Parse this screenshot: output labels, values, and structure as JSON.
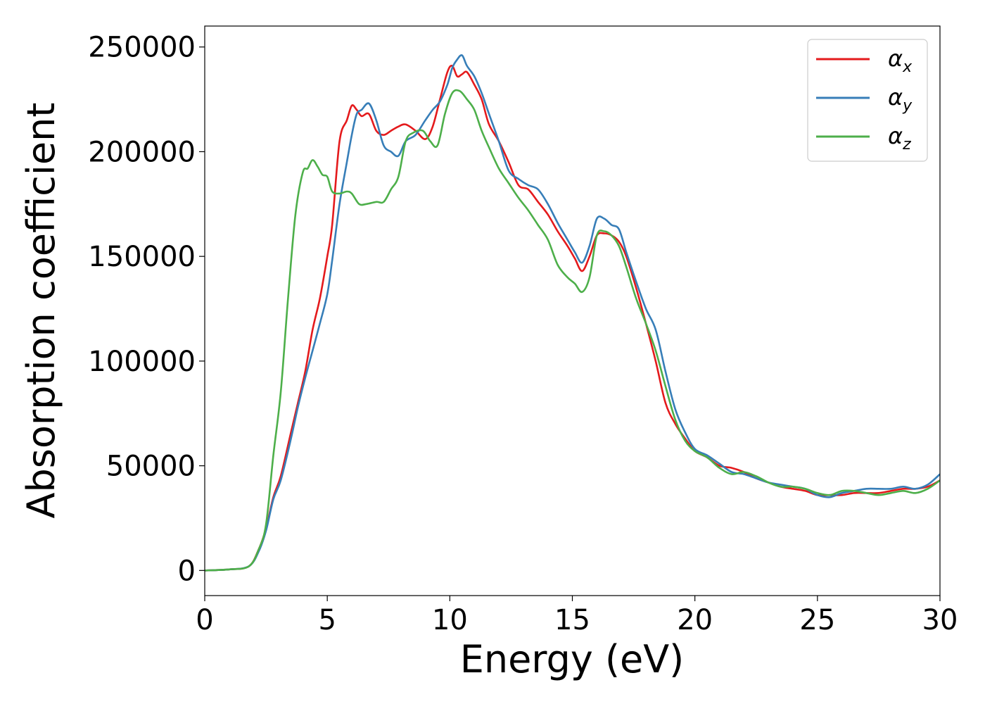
{
  "chart_data": {
    "type": "line",
    "xlabel": "Energy (eV)",
    "ylabel": "Absorption coefficient",
    "xlim": [
      0,
      30
    ],
    "ylim": [
      -12000,
      260000
    ],
    "xticks": [
      0,
      5,
      10,
      15,
      20,
      25,
      30
    ],
    "xtick_labels": [
      "0",
      "5",
      "10",
      "15",
      "20",
      "25",
      "30"
    ],
    "yticks": [
      0,
      50000,
      100000,
      150000,
      200000,
      250000
    ],
    "ytick_labels": [
      "0",
      "50000",
      "100000",
      "150000",
      "200000",
      "250000"
    ],
    "grid": false,
    "legend_position": "top-right",
    "series": [
      {
        "name": "α",
        "subscript": "x",
        "color": "#e41a1c",
        "x": [
          0,
          1.0,
          1.8,
          2.2,
          2.5,
          2.8,
          3.1,
          3.5,
          3.8,
          4.1,
          4.4,
          4.7,
          5.0,
          5.2,
          5.5,
          5.8,
          6.0,
          6.2,
          6.4,
          6.7,
          7.0,
          7.3,
          7.6,
          7.9,
          8.2,
          8.6,
          9.0,
          9.3,
          9.6,
          9.9,
          10.1,
          10.3,
          10.5,
          10.7,
          11.0,
          11.3,
          11.6,
          12.0,
          12.4,
          12.8,
          13.2,
          13.6,
          14.0,
          14.4,
          14.8,
          15.1,
          15.4,
          15.7,
          16.0,
          16.3,
          16.6,
          16.9,
          17.2,
          17.6,
          18.0,
          18.4,
          18.8,
          19.2,
          19.6,
          20.0,
          20.5,
          21.0,
          21.5,
          22.0,
          22.5,
          23.0,
          23.5,
          24.0,
          24.5,
          25.0,
          25.5,
          26.0,
          26.5,
          27.0,
          27.5,
          28.0,
          28.5,
          29.0,
          29.5,
          30.0
        ],
        "y": [
          0,
          500,
          2000,
          10000,
          20000,
          35000,
          45000,
          65000,
          80000,
          95000,
          115000,
          130000,
          150000,
          165000,
          205000,
          215000,
          222000,
          220000,
          217000,
          218000,
          210000,
          208000,
          210000,
          212000,
          213000,
          210000,
          206000,
          212000,
          225000,
          238000,
          241000,
          236000,
          237000,
          238000,
          232000,
          225000,
          213000,
          205000,
          195000,
          184000,
          182000,
          176000,
          170000,
          162000,
          155000,
          149000,
          143000,
          150000,
          160000,
          161000,
          160000,
          157000,
          150000,
          135000,
          118000,
          100000,
          80000,
          70000,
          63000,
          57000,
          54000,
          50000,
          49000,
          47000,
          44000,
          42000,
          40000,
          39000,
          38000,
          36000,
          36000,
          36000,
          37000,
          37000,
          37000,
          38000,
          39000,
          39000,
          40000,
          43000
        ]
      },
      {
        "name": "α",
        "subscript": "y",
        "color": "#377eb8",
        "x": [
          0,
          1.0,
          1.8,
          2.2,
          2.5,
          2.8,
          3.1,
          3.5,
          3.8,
          4.1,
          4.4,
          4.7,
          5.0,
          5.2,
          5.5,
          5.8,
          6.0,
          6.2,
          6.4,
          6.7,
          7.0,
          7.3,
          7.6,
          7.9,
          8.2,
          8.6,
          9.0,
          9.3,
          9.6,
          9.9,
          10.1,
          10.3,
          10.5,
          10.7,
          11.0,
          11.3,
          11.6,
          12.0,
          12.4,
          12.8,
          13.2,
          13.6,
          14.0,
          14.4,
          14.8,
          15.1,
          15.4,
          15.7,
          16.0,
          16.3,
          16.6,
          16.9,
          17.2,
          17.6,
          18.0,
          18.4,
          18.8,
          19.2,
          19.6,
          20.0,
          20.5,
          21.0,
          21.5,
          22.0,
          22.5,
          23.0,
          23.5,
          24.0,
          24.5,
          25.0,
          25.5,
          26.0,
          26.5,
          27.0,
          27.5,
          28.0,
          28.5,
          29.0,
          29.5,
          30.0
        ],
        "y": [
          0,
          500,
          2000,
          9000,
          19000,
          34000,
          43000,
          62000,
          78000,
          92000,
          105000,
          118000,
          132000,
          148000,
          175000,
          195000,
          208000,
          218000,
          220000,
          223000,
          215000,
          203000,
          200000,
          198000,
          205000,
          208000,
          215000,
          220000,
          224000,
          232000,
          240000,
          244000,
          246000,
          241000,
          236000,
          228000,
          218000,
          205000,
          191000,
          187000,
          184000,
          182000,
          175000,
          166000,
          158000,
          152000,
          147000,
          155000,
          168000,
          168000,
          165000,
          163000,
          152000,
          138000,
          125000,
          115000,
          95000,
          77000,
          66000,
          58000,
          55000,
          51000,
          47000,
          46000,
          44000,
          42000,
          41000,
          40000,
          39000,
          36000,
          35000,
          37000,
          38000,
          39000,
          39000,
          39000,
          40000,
          39000,
          41000,
          46000
        ]
      },
      {
        "name": "α",
        "subscript": "z",
        "color": "#4daf4a",
        "x": [
          0,
          1.0,
          1.8,
          2.2,
          2.5,
          2.8,
          3.1,
          3.4,
          3.7,
          4.0,
          4.2,
          4.4,
          4.6,
          4.8,
          5.0,
          5.2,
          5.5,
          5.8,
          6.0,
          6.3,
          6.6,
          7.0,
          7.3,
          7.6,
          7.9,
          8.2,
          8.5,
          8.9,
          9.2,
          9.5,
          9.8,
          10.1,
          10.4,
          10.7,
          11.0,
          11.3,
          11.6,
          12.0,
          12.4,
          12.8,
          13.2,
          13.6,
          14.0,
          14.4,
          14.8,
          15.1,
          15.4,
          15.7,
          16.0,
          16.3,
          16.6,
          16.9,
          17.2,
          17.6,
          18.0,
          18.4,
          18.8,
          19.2,
          19.6,
          20.0,
          20.5,
          21.0,
          21.5,
          22.0,
          22.5,
          23.0,
          23.5,
          24.0,
          24.5,
          25.0,
          25.5,
          26.0,
          26.5,
          27.0,
          27.5,
          28.0,
          28.5,
          29.0,
          29.5,
          30.0
        ],
        "y": [
          0,
          500,
          2000,
          10000,
          22000,
          55000,
          85000,
          130000,
          170000,
          190000,
          192000,
          196000,
          193000,
          189000,
          188000,
          181000,
          180000,
          181000,
          180000,
          175000,
          175000,
          176000,
          176000,
          182000,
          188000,
          205000,
          209000,
          210000,
          205000,
          203000,
          218000,
          228000,
          229000,
          225000,
          220000,
          210000,
          202000,
          192000,
          185000,
          178000,
          172000,
          165000,
          158000,
          146000,
          140000,
          137000,
          133000,
          140000,
          160000,
          162000,
          160000,
          155000,
          145000,
          130000,
          118000,
          105000,
          88000,
          72000,
          62000,
          57000,
          54000,
          49000,
          46000,
          47000,
          45000,
          42000,
          40000,
          40000,
          39000,
          37000,
          36000,
          38000,
          38000,
          37000,
          36000,
          37000,
          38000,
          37000,
          39000,
          43000
        ]
      }
    ]
  }
}
